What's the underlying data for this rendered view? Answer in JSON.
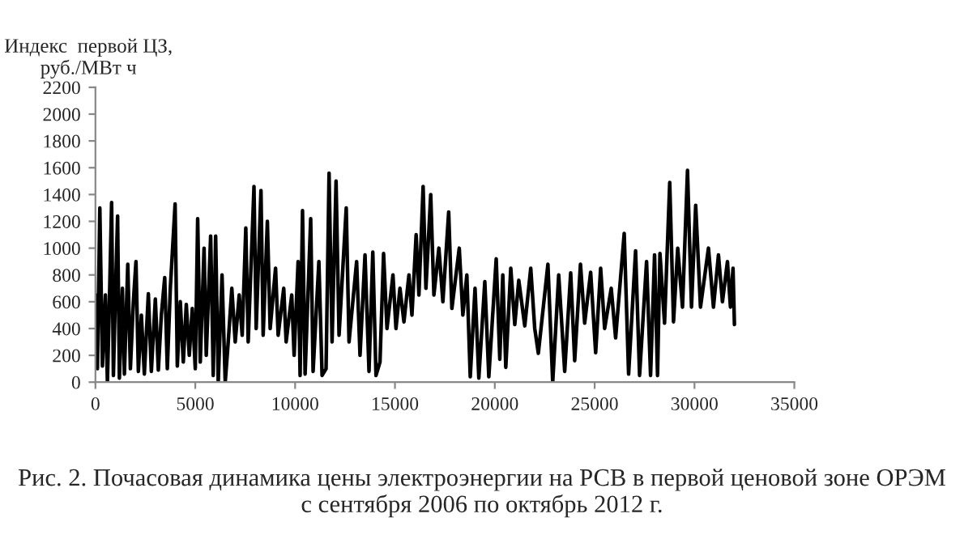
{
  "chart_data": {
    "type": "line",
    "ylabel": "Индекс  первой ЦЗ,\nруб./МВт ч",
    "annotations": [
      "Рис. 2. Почасовая динамика цены электроэнергии на РСВ в первой ценовой зоне ОРЭМ\nс сентября 2006 по октябрь 2012 г."
    ],
    "xlim": [
      0,
      35000
    ],
    "xticks": [
      0,
      5000,
      10000,
      15000,
      20000,
      25000,
      30000,
      35000
    ],
    "ylim": [
      0,
      2200
    ],
    "yticks": [
      0,
      200,
      400,
      600,
      800,
      1000,
      1200,
      1400,
      1600,
      1800,
      2000,
      2200
    ],
    "grid": false,
    "legend": false,
    "marker": "none",
    "line_style": "solid",
    "series": [
      {
        "color": "#000000",
        "x": [
          0,
          100,
          220,
          350,
          500,
          600,
          700,
          810,
          900,
          1000,
          1110,
          1200,
          1350,
          1450,
          1620,
          1750,
          1900,
          2030,
          2150,
          2300,
          2450,
          2650,
          2800,
          3000,
          3150,
          3300,
          3470,
          3600,
          3750,
          3990,
          4100,
          4250,
          4400,
          4550,
          4700,
          4850,
          5000,
          5120,
          5250,
          5440,
          5550,
          5770,
          5900,
          6020,
          6150,
          6340,
          6500,
          6650,
          6830,
          7000,
          7200,
          7350,
          7530,
          7650,
          7940,
          8050,
          8290,
          8400,
          8610,
          8750,
          9020,
          9150,
          9430,
          9550,
          9830,
          9950,
          10150,
          10250,
          10370,
          10500,
          10780,
          10900,
          11190,
          11350,
          11550,
          11700,
          11850,
          12050,
          12200,
          12560,
          12700,
          13080,
          13250,
          13500,
          13700,
          13890,
          14050,
          14250,
          14430,
          14600,
          14900,
          15050,
          15250,
          15450,
          15700,
          15850,
          16060,
          16200,
          16410,
          16550,
          16790,
          16950,
          17200,
          17400,
          17690,
          17850,
          18220,
          18400,
          18600,
          18770,
          19010,
          19200,
          19500,
          19700,
          20070,
          20250,
          20400,
          20550,
          20800,
          21000,
          21200,
          21500,
          21800,
          22000,
          22180,
          22660,
          22900,
          23200,
          23500,
          23800,
          24000,
          24290,
          24500,
          24800,
          25050,
          25300,
          25500,
          25830,
          26050,
          26480,
          26700,
          27050,
          27250,
          27600,
          27800,
          28000,
          28150,
          28270,
          28500,
          28760,
          28950,
          29160,
          29400,
          29650,
          29850,
          30060,
          30300,
          30700,
          30950,
          31200,
          31400,
          31650,
          31800,
          31930,
          32000
        ],
        "values": [
          650,
          100,
          1300,
          120,
          650,
          0,
          600,
          1340,
          50,
          650,
          1240,
          30,
          700,
          60,
          880,
          100,
          600,
          900,
          80,
          500,
          60,
          660,
          80,
          620,
          90,
          500,
          780,
          100,
          700,
          1330,
          120,
          600,
          150,
          580,
          200,
          550,
          100,
          1220,
          150,
          1000,
          200,
          1090,
          50,
          1090,
          0,
          800,
          0,
          300,
          700,
          300,
          650,
          350,
          1150,
          300,
          1460,
          400,
          1430,
          350,
          1200,
          400,
          850,
          350,
          700,
          300,
          650,
          200,
          900,
          50,
          1280,
          60,
          1220,
          80,
          900,
          50,
          100,
          1560,
          300,
          1500,
          350,
          1300,
          300,
          900,
          200,
          950,
          80,
          970,
          50,
          150,
          960,
          400,
          800,
          400,
          700,
          450,
          800,
          500,
          1100,
          650,
          1460,
          700,
          1400,
          650,
          1000,
          600,
          1270,
          550,
          1000,
          500,
          800,
          40,
          700,
          30,
          750,
          40,
          920,
          170,
          800,
          110,
          850,
          430,
          760,
          420,
          850,
          400,
          215,
          880,
          0,
          800,
          80,
          815,
          160,
          880,
          440,
          820,
          220,
          850,
          400,
          700,
          330,
          1110,
          60,
          980,
          50,
          900,
          50,
          950,
          50,
          960,
          440,
          1490,
          450,
          1000,
          560,
          1580,
          560,
          1320,
          560,
          1000,
          560,
          950,
          600,
          900,
          560,
          850,
          430
        ]
      }
    ]
  }
}
